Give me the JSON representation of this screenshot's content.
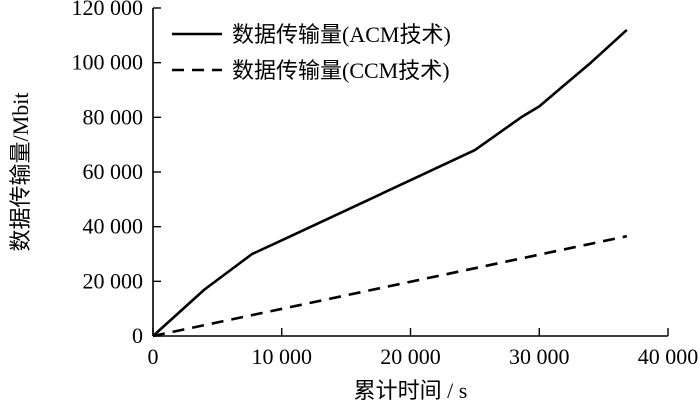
{
  "chart_data": {
    "type": "line",
    "title": "",
    "xlabel": "累计时间 / s",
    "ylabel": "数据传输量/Mbit",
    "xlim": [
      0,
      40000
    ],
    "ylim": [
      0,
      120000
    ],
    "xticks": [
      0,
      10000,
      20000,
      30000,
      40000
    ],
    "xtick_labels": [
      "0",
      "10 000",
      "20 000",
      "30 000",
      "40 000"
    ],
    "yticks": [
      0,
      20000,
      40000,
      60000,
      80000,
      100000,
      120000
    ],
    "ytick_labels": [
      "0",
      "20 000",
      "40 000",
      "60 000",
      "80 000",
      "100 000",
      "120 000"
    ],
    "grid": false,
    "legend_position": "top-right",
    "series": [
      {
        "name": "数据传输量(ACM技术)",
        "style": "solid",
        "color": "#000000",
        "x": [
          0,
          4000,
          7700,
          10000,
          15000,
          20000,
          25000,
          28600,
          30000,
          32000,
          34000,
          36800
        ],
        "y": [
          0,
          17000,
          30000,
          35000,
          46000,
          57000,
          68000,
          80000,
          84000,
          92000,
          100000,
          112000
        ]
      },
      {
        "name": "数据传输量(CCM技术)",
        "style": "dashed",
        "color": "#000000",
        "x": [
          0,
          36800
        ],
        "y": [
          0,
          36500
        ]
      }
    ]
  }
}
